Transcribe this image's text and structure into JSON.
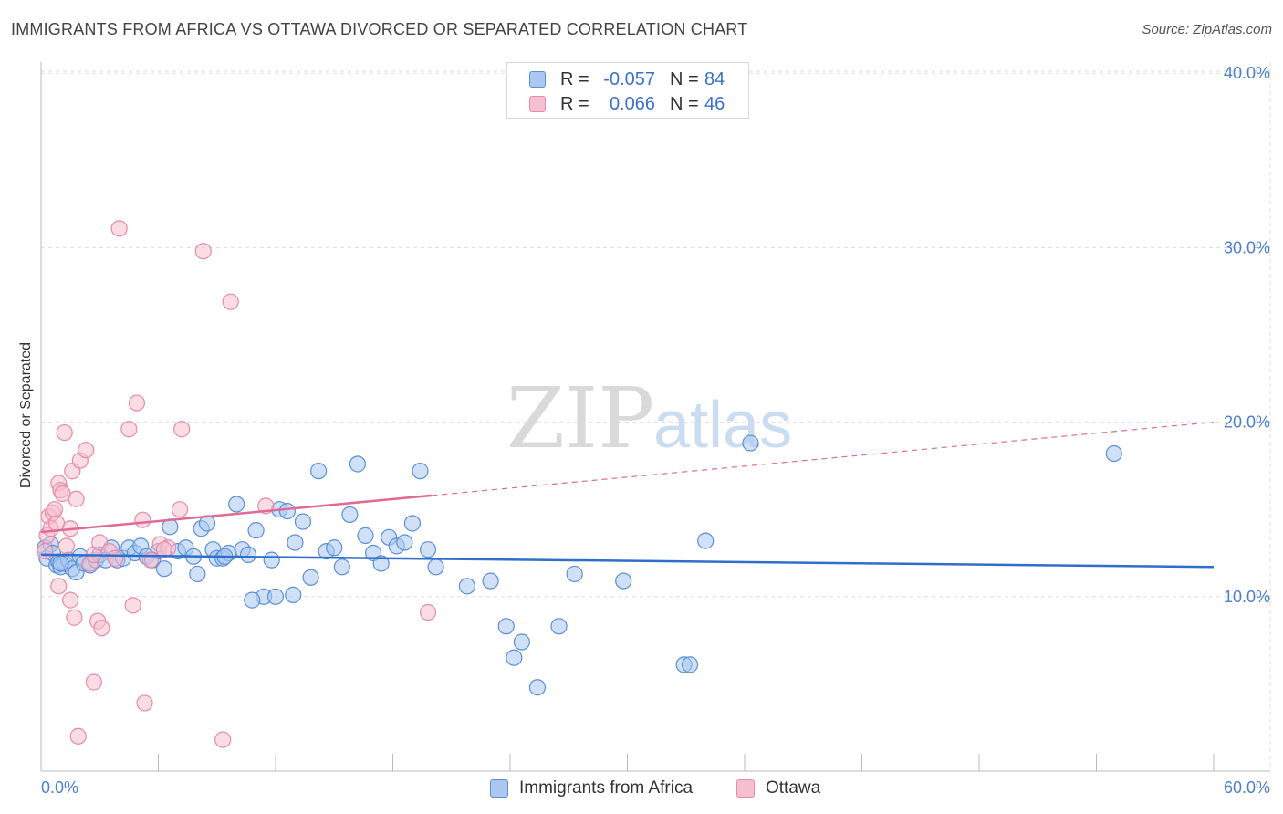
{
  "header": {
    "title": "IMMIGRANTS FROM AFRICA VS OTTAWA DIVORCED OR SEPARATED CORRELATION CHART",
    "source": "Source: ZipAtlas.com"
  },
  "legend_top": {
    "rows": [
      {
        "r_label": "R =",
        "r_value": "-0.057",
        "n_label": "N =",
        "n_value": "84"
      },
      {
        "r_label": "R =",
        "r_value": "0.066",
        "n_label": "N =",
        "n_value": "46"
      }
    ]
  },
  "watermark": {
    "zip": "ZIP",
    "atlas": "atlas"
  },
  "colors": {
    "blue_fill": "#aac8f0",
    "blue_stroke": "#5b8fd6",
    "blue_line": "#2f6fcc",
    "pink_fill": "#f6bfd0",
    "pink_stroke": "#e88aa8",
    "pink_line": "#e06a93",
    "tick_text": "#4a7fd0",
    "grid": "#dddddd"
  },
  "chart_data": {
    "type": "scatter",
    "title": "IMMIGRANTS FROM AFRICA VS OTTAWA DIVORCED OR SEPARATED CORRELATION CHART",
    "xlabel": "",
    "ylabel": "Divorced or Separated",
    "xlim": [
      0,
      60
    ],
    "ylim": [
      0,
      42
    ],
    "x_tick_labels": [
      "0.0%",
      "60.0%"
    ],
    "y_ticks": [
      10,
      20,
      30,
      40
    ],
    "y_tick_labels": [
      "10.0%",
      "20.0%",
      "30.0%",
      "40.0%"
    ],
    "grid": "horizontal dashed",
    "legend_position": "bottom-center",
    "series": [
      {
        "name": "Immigrants from Africa",
        "color": "#aac8f0",
        "points": [
          [
            0.2,
            12.8
          ],
          [
            0.3,
            12.2
          ],
          [
            0.5,
            13.0
          ],
          [
            0.6,
            12.5
          ],
          [
            0.8,
            11.8
          ],
          [
            0.9,
            12.0
          ],
          [
            1.0,
            11.7
          ],
          [
            1.2,
            11.9
          ],
          [
            1.4,
            12.1
          ],
          [
            1.6,
            11.6
          ],
          [
            1.8,
            11.4
          ],
          [
            2.0,
            12.3
          ],
          [
            2.2,
            11.9
          ],
          [
            2.5,
            11.8
          ],
          [
            2.8,
            12.1
          ],
          [
            3.0,
            12.4
          ],
          [
            3.3,
            12.1
          ],
          [
            3.6,
            12.8
          ],
          [
            3.9,
            12.1
          ],
          [
            4.2,
            12.2
          ],
          [
            4.5,
            12.8
          ],
          [
            4.8,
            12.5
          ],
          [
            5.1,
            12.9
          ],
          [
            5.4,
            12.3
          ],
          [
            5.7,
            12.1
          ],
          [
            6.0,
            12.6
          ],
          [
            6.3,
            11.6
          ],
          [
            6.6,
            14.0
          ],
          [
            7.0,
            12.6
          ],
          [
            7.4,
            12.8
          ],
          [
            7.8,
            12.3
          ],
          [
            8.0,
            11.3
          ],
          [
            8.2,
            13.9
          ],
          [
            8.5,
            14.2
          ],
          [
            8.8,
            12.7
          ],
          [
            9.0,
            12.2
          ],
          [
            9.3,
            12.2
          ],
          [
            9.6,
            12.5
          ],
          [
            10.0,
            15.3
          ],
          [
            10.3,
            12.7
          ],
          [
            10.6,
            12.4
          ],
          [
            11.0,
            13.8
          ],
          [
            11.4,
            10.0
          ],
          [
            11.8,
            12.1
          ],
          [
            12.2,
            15.0
          ],
          [
            12.6,
            14.9
          ],
          [
            13.0,
            13.1
          ],
          [
            13.4,
            14.3
          ],
          [
            13.8,
            11.1
          ],
          [
            14.2,
            17.2
          ],
          [
            14.6,
            12.6
          ],
          [
            15.0,
            12.8
          ],
          [
            15.4,
            11.7
          ],
          [
            15.8,
            14.7
          ],
          [
            16.2,
            17.6
          ],
          [
            16.6,
            13.5
          ],
          [
            17.0,
            12.5
          ],
          [
            17.4,
            11.9
          ],
          [
            17.8,
            13.4
          ],
          [
            18.2,
            12.9
          ],
          [
            18.6,
            13.1
          ],
          [
            19.0,
            14.2
          ],
          [
            19.4,
            17.2
          ],
          [
            19.8,
            12.7
          ],
          [
            20.2,
            11.7
          ],
          [
            10.8,
            9.8
          ],
          [
            12.0,
            10.0
          ],
          [
            12.9,
            10.1
          ],
          [
            21.8,
            10.6
          ],
          [
            23.0,
            10.9
          ],
          [
            23.8,
            8.3
          ],
          [
            24.6,
            7.4
          ],
          [
            24.2,
            6.5
          ],
          [
            25.4,
            4.8
          ],
          [
            26.5,
            8.3
          ],
          [
            27.3,
            11.3
          ],
          [
            29.8,
            10.9
          ],
          [
            32.9,
            6.1
          ],
          [
            33.2,
            6.1
          ],
          [
            34.0,
            13.2
          ],
          [
            36.3,
            18.8
          ],
          [
            54.9,
            18.2
          ],
          [
            1.0,
            11.9
          ],
          [
            9.4,
            12.3
          ]
        ]
      },
      {
        "name": "Ottawa",
        "color": "#f6bfd0",
        "points": [
          [
            0.2,
            12.6
          ],
          [
            0.3,
            13.5
          ],
          [
            0.4,
            14.6
          ],
          [
            0.5,
            13.9
          ],
          [
            0.6,
            14.8
          ],
          [
            0.7,
            15.0
          ],
          [
            0.8,
            14.2
          ],
          [
            0.9,
            16.5
          ],
          [
            1.0,
            16.1
          ],
          [
            1.1,
            15.9
          ],
          [
            1.2,
            19.4
          ],
          [
            1.3,
            12.9
          ],
          [
            1.5,
            13.9
          ],
          [
            1.6,
            17.2
          ],
          [
            1.8,
            15.6
          ],
          [
            2.0,
            17.8
          ],
          [
            2.3,
            18.4
          ],
          [
            2.5,
            11.9
          ],
          [
            2.7,
            12.4
          ],
          [
            3.0,
            13.1
          ],
          [
            3.5,
            12.6
          ],
          [
            4.0,
            31.1
          ],
          [
            4.5,
            19.6
          ],
          [
            4.9,
            21.1
          ],
          [
            5.2,
            14.4
          ],
          [
            5.6,
            12.1
          ],
          [
            6.1,
            13.0
          ],
          [
            6.5,
            12.8
          ],
          [
            7.1,
            15.0
          ],
          [
            7.2,
            19.6
          ],
          [
            8.3,
            29.8
          ],
          [
            9.7,
            26.9
          ],
          [
            11.5,
            15.2
          ],
          [
            0.9,
            10.6
          ],
          [
            1.5,
            9.8
          ],
          [
            1.7,
            8.8
          ],
          [
            2.9,
            8.6
          ],
          [
            3.1,
            8.2
          ],
          [
            4.7,
            9.5
          ],
          [
            2.7,
            5.1
          ],
          [
            5.3,
            3.9
          ],
          [
            1.9,
            2.0
          ],
          [
            9.3,
            1.8
          ],
          [
            19.8,
            9.1
          ],
          [
            6.3,
            12.7
          ],
          [
            3.8,
            12.2
          ]
        ]
      }
    ],
    "trend_lines": [
      {
        "series": "Immigrants from Africa",
        "x": [
          0,
          60
        ],
        "y": [
          12.4,
          11.7
        ],
        "style": "solid"
      },
      {
        "series": "Ottawa",
        "x": [
          0,
          20
        ],
        "y": [
          13.7,
          15.8
        ],
        "style": "solid"
      },
      {
        "series": "Ottawa",
        "x": [
          20,
          60
        ],
        "y": [
          15.8,
          20.0
        ],
        "style": "dashed"
      }
    ]
  },
  "legend_bottom": {
    "items": [
      {
        "label": "Immigrants from Africa"
      },
      {
        "label": "Ottawa"
      }
    ]
  }
}
